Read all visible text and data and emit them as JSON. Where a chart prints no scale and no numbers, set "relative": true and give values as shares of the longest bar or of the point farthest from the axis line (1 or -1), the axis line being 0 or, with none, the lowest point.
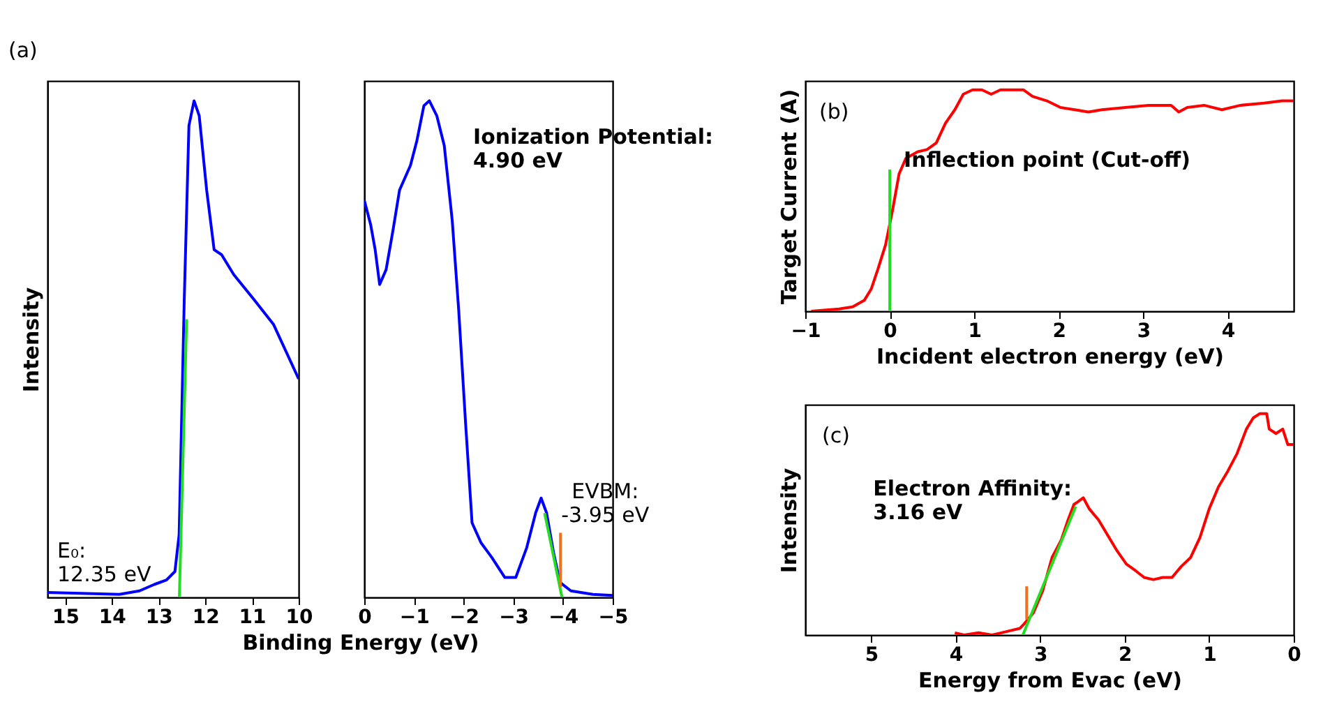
{
  "chart_data": [
    {
      "type": "line",
      "relative": true,
      "xlim": [
        15.38,
        10
      ],
      "xticks": [
        15,
        14,
        13,
        12,
        11,
        10
      ],
      "xlabel": "Binding Energy (eV)",
      "ylabel": "Intensity",
      "tick_labels": "x",
      "series": [
        {
          "color": "#0000ff",
          "x": [
            15.38,
            13.84,
            13.41,
            13.09,
            12.83,
            12.65,
            12.56,
            12.45,
            12.35,
            12.24,
            12.13,
            11.97,
            11.81,
            11.65,
            11.39,
            10.96,
            10.54,
            10.0
          ],
          "values": [
            0.01,
            0.006,
            0.013,
            0.026,
            0.035,
            0.052,
            0.126,
            0.6,
            0.95,
            1.0,
            0.97,
            0.82,
            0.7,
            0.69,
            0.65,
            0.6,
            0.55,
            0.44
          ]
        },
        {
          "color": "#22dd22",
          "x": [
            12.555,
            12.4
          ],
          "values": [
            0,
            0.56
          ]
        }
      ],
      "annotations": [
        "(a)",
        {
          "text": "E₀:\n12.35 eV",
          "x": 12.6,
          "y": 0.01
        }
      ]
    },
    {
      "type": "line",
      "relative": true,
      "xlim": [
        0,
        -5
      ],
      "xticks": [
        0,
        -1,
        -2,
        -3,
        -4,
        -5
      ],
      "tick_labels": "x",
      "series": [
        {
          "color": "#0000ff",
          "x": [
            0,
            -0.13,
            -0.22,
            -0.31,
            -0.44,
            -0.58,
            -0.71,
            -0.93,
            -1.06,
            -1.2,
            -1.31,
            -1.46,
            -1.61,
            -1.77,
            -1.9,
            -2.04,
            -2.17,
            -2.35,
            -2.57,
            -2.83,
            -3.05,
            -3.27,
            -3.45,
            -3.56,
            -3.67,
            -3.81,
            -3.94,
            -4.16,
            -4.6,
            -5.0
          ],
          "values": [
            0.8,
            0.75,
            0.7,
            0.63,
            0.66,
            0.74,
            0.82,
            0.87,
            0.92,
            0.99,
            1.0,
            0.97,
            0.91,
            0.76,
            0.58,
            0.35,
            0.15,
            0.11,
            0.08,
            0.04,
            0.04,
            0.1,
            0.17,
            0.2,
            0.17,
            0.09,
            0.03,
            0.013,
            0.006,
            0.004
          ]
        },
        {
          "color": "#22dd22",
          "x": [
            -3.63,
            -3.98
          ],
          "values": [
            0.17,
            0
          ]
        },
        {
          "color": "#f07020",
          "x": [
            -3.95,
            -3.95
          ],
          "values": [
            0.02,
            0.13
          ]
        }
      ],
      "annotations": [
        "Ionization Potential:\n4.90 eV",
        {
          "text": "EVBM:\n-3.95 eV",
          "x": -3.95,
          "y": 0.13
        }
      ]
    },
    {
      "type": "line",
      "relative": true,
      "xlim": [
        -1,
        4.78
      ],
      "xticks": [
        -1,
        0,
        1,
        2,
        3,
        4
      ],
      "xlabel": "Incident electron energy (eV)",
      "ylabel": "Target Current (A)",
      "tick_labels": "x",
      "series": [
        {
          "color": "#ff0000",
          "x": [
            -0.93,
            -0.6,
            -0.44,
            -0.3,
            -0.22,
            -0.14,
            -0.05,
            0.03,
            0.11,
            0.19,
            0.33,
            0.44,
            0.55,
            0.66,
            0.77,
            0.87,
            0.98,
            1.09,
            1.2,
            1.31,
            1.48,
            1.58,
            1.69,
            1.86,
            2.02,
            2.19,
            2.35,
            2.51,
            2.79,
            3.06,
            3.33,
            3.42,
            3.52,
            3.72,
            3.93,
            4.15,
            4.43,
            4.64,
            4.78
          ],
          "values": [
            0.0,
            0.01,
            0.02,
            0.05,
            0.1,
            0.19,
            0.3,
            0.45,
            0.62,
            0.69,
            0.72,
            0.73,
            0.76,
            0.85,
            0.91,
            0.98,
            1.0,
            1.0,
            0.98,
            1.0,
            1.0,
            1.0,
            0.97,
            0.95,
            0.92,
            0.91,
            0.9,
            0.91,
            0.92,
            0.93,
            0.93,
            0.9,
            0.92,
            0.93,
            0.91,
            0.93,
            0.94,
            0.95,
            0.95
          ]
        },
        {
          "color": "#22dd22",
          "x": [
            0,
            0
          ],
          "values": [
            0,
            0.64
          ]
        }
      ],
      "annotations": [
        "(b)",
        {
          "text": "Inflection point (Cut-off)",
          "x": 0,
          "y": 0.4
        }
      ]
    },
    {
      "type": "line",
      "relative": true,
      "xlim": [
        5.78,
        0
      ],
      "xticks": [
        5,
        4,
        3,
        2,
        1,
        0
      ],
      "xlabel": "Energy from Evac (eV)",
      "ylabel": "Intensity",
      "tick_labels": "x",
      "series": [
        {
          "color": "#ff0000",
          "x": [
            4.01,
            3.9,
            3.73,
            3.57,
            3.46,
            3.35,
            3.24,
            3.19,
            3.08,
            2.97,
            2.86,
            2.75,
            2.67,
            2.6,
            2.56,
            2.49,
            2.42,
            2.31,
            2.2,
            2.09,
            1.98,
            1.87,
            1.77,
            1.66,
            1.55,
            1.44,
            1.33,
            1.22,
            1.11,
            1.0,
            0.89,
            0.78,
            0.67,
            0.56,
            0.48,
            0.4,
            0.32,
            0.29,
            0.21,
            0.13,
            0.07,
            0.0
          ],
          "values": [
            0.01,
            0.0,
            0.01,
            0.0,
            0.01,
            0.02,
            0.03,
            0.05,
            0.1,
            0.2,
            0.35,
            0.43,
            0.52,
            0.59,
            0.6,
            0.62,
            0.57,
            0.52,
            0.45,
            0.38,
            0.32,
            0.29,
            0.26,
            0.25,
            0.26,
            0.26,
            0.31,
            0.35,
            0.44,
            0.57,
            0.67,
            0.74,
            0.82,
            0.93,
            0.98,
            1.0,
            1.0,
            0.93,
            0.91,
            0.93,
            0.86,
            0.86
          ]
        },
        {
          "color": "#22dd22",
          "x": [
            3.205,
            2.58
          ],
          "values": [
            0,
            0.58
          ]
        },
        {
          "color": "#f07020",
          "x": [
            3.16,
            3.16
          ],
          "values": [
            0.07,
            0.22
          ]
        }
      ],
      "annotations": [
        "(c)",
        {
          "text": "Electron Affinity:\n3.16 eV",
          "x": 3.16,
          "y": 0.22
        }
      ]
    }
  ]
}
